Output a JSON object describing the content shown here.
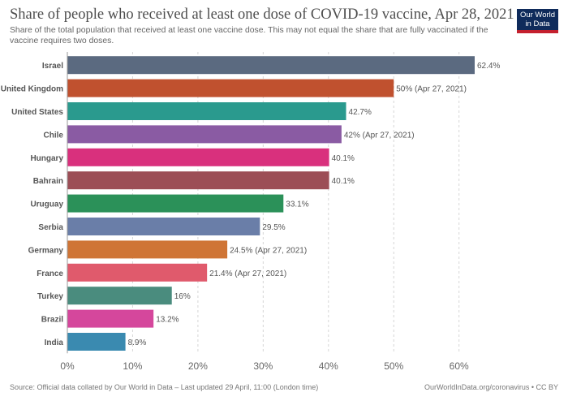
{
  "header": {
    "title": "Share of people who received at least one dose of COVID-19 vaccine, Apr 28, 2021",
    "subtitle": "Share of the total population that received at least one vaccine dose. This may not equal the share that are fully vaccinated if the vaccine requires two doses."
  },
  "logo": {
    "line1": "Our World",
    "line2": "in Data"
  },
  "footer": {
    "source": "Source: Official data collated by Our World in Data – Last updated 29 April, 11:00 (London time)",
    "link": "OurWorldInData.org/coronavirus • CC BY"
  },
  "chart_data": {
    "type": "bar",
    "orientation": "horizontal",
    "categories": [
      "Israel",
      "United Kingdom",
      "United States",
      "Chile",
      "Hungary",
      "Bahrain",
      "Uruguay",
      "Serbia",
      "Germany",
      "France",
      "Turkey",
      "Brazil",
      "India"
    ],
    "values": [
      62.4,
      50,
      42.7,
      42,
      40.1,
      40.1,
      33.1,
      29.5,
      24.5,
      21.4,
      16,
      13.2,
      8.9
    ],
    "value_labels": [
      "62.4%",
      "50% (Apr 27, 2021)",
      "42.7%",
      "42% (Apr 27, 2021)",
      "40.1%",
      "40.1%",
      "33.1%",
      "29.5%",
      "24.5% (Apr 27, 2021)",
      "21.4% (Apr 27, 2021)",
      "16%",
      "13.2%",
      "8.9%"
    ],
    "colors": [
      "#5b6a80",
      "#c0512f",
      "#2a9a8e",
      "#8a5ba3",
      "#d9307d",
      "#9c4e56",
      "#2b9159",
      "#6a7ea8",
      "#cf7536",
      "#e05a6c",
      "#4a8c7e",
      "#d5479c",
      "#3a8ab0"
    ],
    "xlim": [
      0,
      62.4
    ],
    "x_ticks": [
      "0%",
      "10%",
      "20%",
      "30%",
      "40%",
      "50%",
      "60%"
    ],
    "x_tick_values": [
      0,
      10,
      20,
      30,
      40,
      50,
      60
    ],
    "grid": true
  }
}
